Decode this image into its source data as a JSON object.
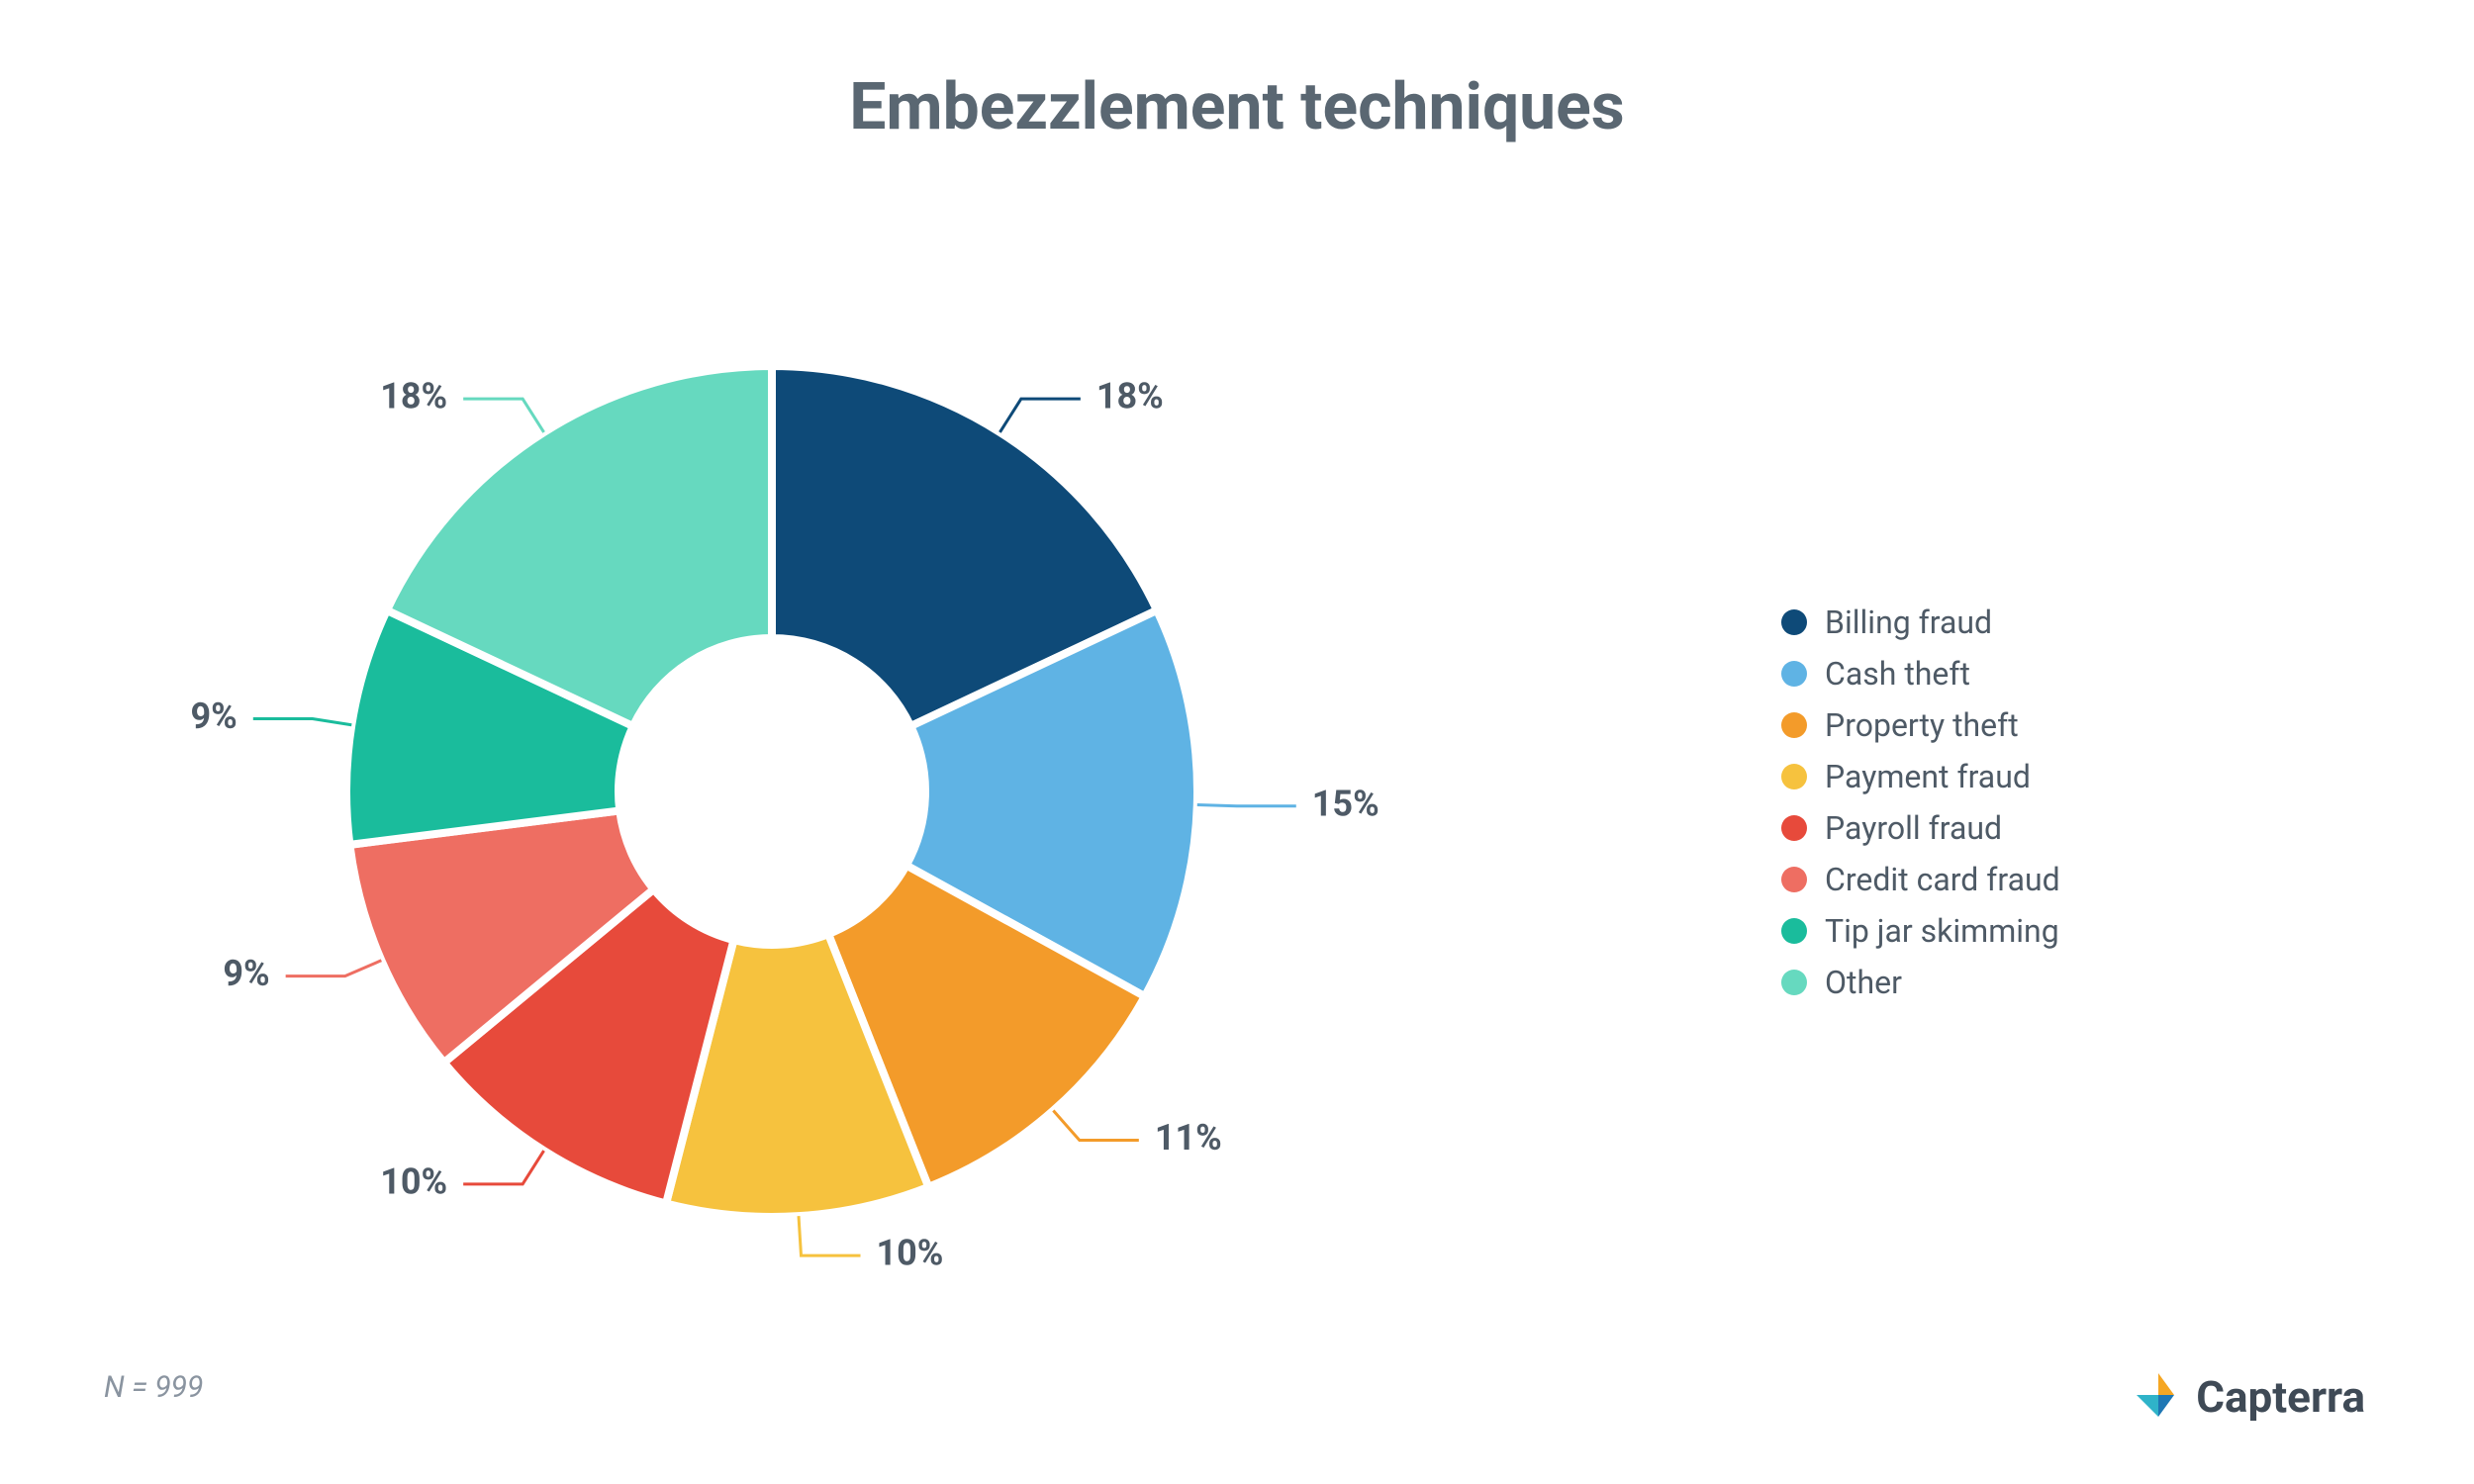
{
  "title": "Embezzlement techniques",
  "title_fontsize": 66,
  "title_color": "#5a6772",
  "chart": {
    "type": "donut",
    "start_angle_deg": 0,
    "direction": "clockwise",
    "outer_radius": 430,
    "inner_radius": 155,
    "stroke": "#ffffff",
    "stroke_width": 8,
    "background": "#ffffff",
    "label_fontsize": 36,
    "label_color": "#4e5a66",
    "leader_len1": 40,
    "leader_len2": 60,
    "slices": [
      {
        "label": "Billing fraud",
        "value": 18,
        "color": "#0e4a78",
        "display": "18%"
      },
      {
        "label": "Cash theft",
        "value": 15,
        "color": "#5fb3e4",
        "display": "15%"
      },
      {
        "label": "Property theft",
        "value": 11,
        "color": "#f39b2a",
        "display": "11%"
      },
      {
        "label": "Payment fraud",
        "value": 10,
        "color": "#f6c23e",
        "display": "10%"
      },
      {
        "label": "Payroll fraud",
        "value": 10,
        "color": "#e74a3b",
        "display": "10%"
      },
      {
        "label": "Credit card fraud",
        "value": 9,
        "color": "#ee6e62",
        "display": "9%"
      },
      {
        "label": "Tip jar skimming",
        "value": 9,
        "color": "#1abc9c",
        "display": "9%"
      },
      {
        "label": "Other",
        "value": 18,
        "color": "#66d9bf",
        "display": "18%"
      }
    ]
  },
  "legend": {
    "fontsize": 32,
    "text_color": "#4e5a66",
    "swatch_size": 26
  },
  "footer": {
    "text": "N = 999",
    "fontsize": 30,
    "color": "#8a94a0"
  },
  "brand": {
    "name": "Capterra",
    "fontsize": 44,
    "text_color": "#3f4a56",
    "arrow_colors": {
      "top": "#f5a623",
      "right": "#1f77b4",
      "bottomleft": "#2fb3c9"
    }
  }
}
